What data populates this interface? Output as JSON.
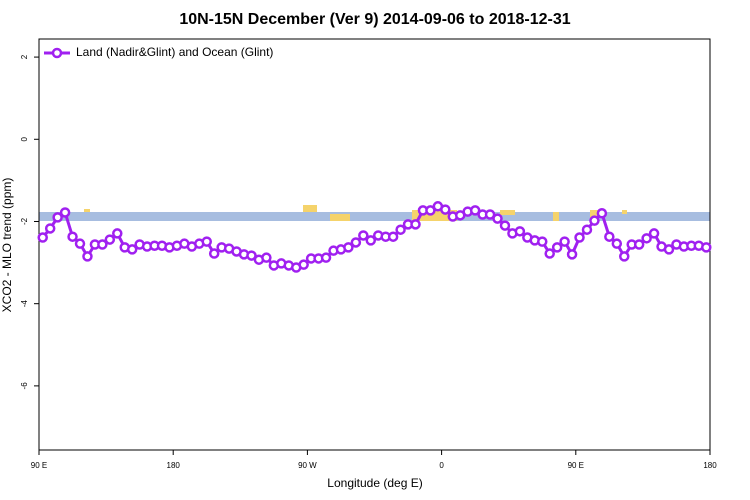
{
  "chart_data": {
    "type": "line",
    "title": "10N-15N December (Ver 9)   2014-09-06 to 2018-12-31",
    "x_label": "Longitude (deg E)",
    "y_label": "XCO2 - MLO trend (ppm)",
    "xlim": [
      90,
      540
    ],
    "ylim": [
      -7.56,
      2.44
    ],
    "xticks": [
      {
        "value": 90,
        "label": "90 E"
      },
      {
        "value": 180,
        "label": "180"
      },
      {
        "value": 270,
        "label": "90 W"
      },
      {
        "value": 360,
        "label": "0"
      },
      {
        "value": 450,
        "label": "90 E"
      },
      {
        "value": 540,
        "label": "180"
      }
    ],
    "yticks": [
      2,
      0,
      -2,
      -4,
      -6
    ],
    "legend": "top-left",
    "x": [
      92.5,
      97.5,
      102.5,
      107.5,
      112.5,
      117.5,
      122.5,
      127.5,
      132.5,
      137.5,
      142.5,
      147.5,
      152.5,
      157.5,
      162.5,
      167.5,
      172.5,
      177.5,
      182.5,
      187.5,
      192.5,
      197.5,
      202.5,
      207.5,
      212.5,
      217.5,
      222.5,
      227.5,
      232.5,
      237.5,
      242.5,
      247.5,
      252.5,
      257.5,
      262.5,
      267.5,
      272.5,
      277.5,
      282.5,
      287.5,
      292.5,
      297.5,
      302.5,
      307.5,
      312.5,
      317.5,
      322.5,
      327.5,
      332.5,
      337.5,
      342.5,
      347.5,
      352.5,
      357.5,
      362.5,
      367.5,
      372.5,
      377.5,
      382.5,
      387.5,
      392.5,
      397.5,
      402.5,
      407.5,
      412.5,
      417.5,
      422.5,
      427.5,
      432.5,
      437.5,
      442.5,
      447.5,
      452.5,
      457.5,
      462.5,
      467.5,
      472.5,
      477.5,
      482.5,
      487.5,
      492.5,
      497.5,
      502.5,
      507.5,
      512.5,
      517.5,
      522.5,
      527.5,
      532.5,
      537.5
    ],
    "series": [
      {
        "name": "Land (Nadir&Glint) and Ocean (Glint)",
        "color": "#a020f0",
        "values": [
          -2.39,
          -2.17,
          -1.9,
          -1.78,
          -2.37,
          -2.54,
          -2.85,
          -2.56,
          -2.56,
          -2.44,
          -2.29,
          -2.63,
          -2.68,
          -2.56,
          -2.61,
          -2.59,
          -2.59,
          -2.63,
          -2.59,
          -2.54,
          -2.61,
          -2.54,
          -2.49,
          -2.78,
          -2.63,
          -2.66,
          -2.73,
          -2.8,
          -2.83,
          -2.93,
          -2.88,
          -3.07,
          -3.02,
          -3.07,
          -3.12,
          -3.05,
          -2.9,
          -2.9,
          -2.88,
          -2.71,
          -2.68,
          -2.63,
          -2.51,
          -2.34,
          -2.46,
          -2.34,
          -2.37,
          -2.37,
          -2.2,
          -2.07,
          -2.07,
          -1.73,
          -1.73,
          -1.63,
          -1.71,
          -1.88,
          -1.85,
          -1.76,
          -1.73,
          -1.83,
          -1.83,
          -1.93,
          -2.1,
          -2.29,
          -2.24,
          -2.39,
          -2.46,
          -2.49,
          -2.78,
          -2.63,
          -2.49,
          -2.8,
          -2.39,
          -2.2,
          -1.98,
          -1.8,
          -2.37,
          -2.54,
          -2.85,
          -2.56,
          -2.56,
          -2.41,
          -2.29,
          -2.61,
          -2.68,
          -2.56,
          -2.61,
          -2.59,
          -2.59,
          -2.63
        ]
      }
    ]
  }
}
